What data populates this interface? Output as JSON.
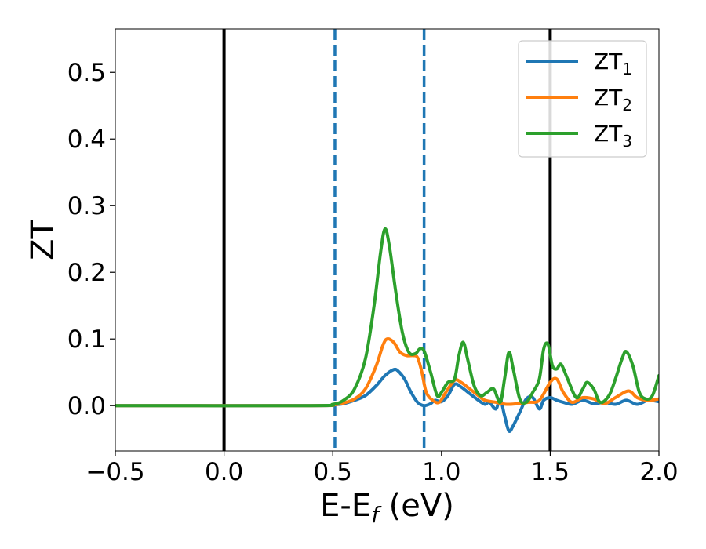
{
  "chart_data": {
    "type": "line",
    "title": "",
    "xlabel": "E-E",
    "xlabel_sub": "f",
    "xlabel_unit": " (eV)",
    "ylabel": "ZT",
    "xlim": [
      -0.5,
      2.0
    ],
    "ylim": [
      -0.068,
      0.565
    ],
    "grid": false,
    "legend_position": "top-right",
    "x_ticks": [
      -0.5,
      0.0,
      0.5,
      1.0,
      1.5,
      2.0
    ],
    "x_tick_labels": [
      "−0.5",
      "0.0",
      "0.5",
      "1.0",
      "1.5",
      "2.0"
    ],
    "y_ticks": [
      0.0,
      0.1,
      0.2,
      0.3,
      0.4,
      0.5
    ],
    "y_tick_labels": [
      "0.0",
      "0.1",
      "0.2",
      "0.3",
      "0.4",
      "0.5"
    ],
    "vertical_lines": [
      {
        "x": 0.0,
        "style": "solid",
        "color": "#000000"
      },
      {
        "x": 1.5,
        "style": "solid",
        "color": "#000000"
      },
      {
        "x": 0.51,
        "style": "dashed",
        "color": "#1f77b4"
      },
      {
        "x": 0.92,
        "style": "dashed",
        "color": "#1f77b4"
      }
    ],
    "series": [
      {
        "name": "ZT",
        "name_sub": "1",
        "color": "#1f77b4",
        "points": [
          [
            -0.5,
            0.0
          ],
          [
            0.4,
            0.0
          ],
          [
            0.5,
            0.001
          ],
          [
            0.55,
            0.003
          ],
          [
            0.6,
            0.008
          ],
          [
            0.65,
            0.015
          ],
          [
            0.7,
            0.03
          ],
          [
            0.74,
            0.045
          ],
          [
            0.78,
            0.054
          ],
          [
            0.8,
            0.052
          ],
          [
            0.83,
            0.04
          ],
          [
            0.86,
            0.02
          ],
          [
            0.89,
            0.005
          ],
          [
            0.92,
            0.0
          ],
          [
            0.95,
            0.003
          ],
          [
            0.97,
            0.008
          ],
          [
            1.0,
            0.006
          ],
          [
            1.03,
            0.015
          ],
          [
            1.06,
            0.032
          ],
          [
            1.09,
            0.028
          ],
          [
            1.13,
            0.018
          ],
          [
            1.17,
            0.008
          ],
          [
            1.2,
            0.002
          ],
          [
            1.22,
            0.005
          ],
          [
            1.25,
            -0.005
          ],
          [
            1.27,
            0.01
          ],
          [
            1.29,
            -0.015
          ],
          [
            1.31,
            -0.038
          ],
          [
            1.33,
            -0.03
          ],
          [
            1.36,
            -0.01
          ],
          [
            1.39,
            0.01
          ],
          [
            1.42,
            0.012
          ],
          [
            1.45,
            -0.005
          ],
          [
            1.47,
            0.008
          ],
          [
            1.5,
            0.012
          ],
          [
            1.53,
            0.008
          ],
          [
            1.56,
            0.005
          ],
          [
            1.6,
            0.002
          ],
          [
            1.65,
            0.008
          ],
          [
            1.7,
            0.003
          ],
          [
            1.75,
            0.005
          ],
          [
            1.8,
            0.002
          ],
          [
            1.85,
            0.008
          ],
          [
            1.9,
            0.002
          ],
          [
            1.95,
            0.008
          ],
          [
            2.0,
            0.006
          ]
        ]
      },
      {
        "name": "ZT",
        "name_sub": "2",
        "color": "#ff7f0e",
        "points": [
          [
            -0.5,
            0.0
          ],
          [
            0.4,
            0.0
          ],
          [
            0.5,
            0.001
          ],
          [
            0.55,
            0.004
          ],
          [
            0.6,
            0.01
          ],
          [
            0.65,
            0.025
          ],
          [
            0.7,
            0.06
          ],
          [
            0.73,
            0.09
          ],
          [
            0.75,
            0.1
          ],
          [
            0.78,
            0.095
          ],
          [
            0.81,
            0.08
          ],
          [
            0.84,
            0.075
          ],
          [
            0.87,
            0.075
          ],
          [
            0.89,
            0.072
          ],
          [
            0.91,
            0.05
          ],
          [
            0.93,
            0.02
          ],
          [
            0.96,
            0.008
          ],
          [
            0.99,
            0.005
          ],
          [
            1.02,
            0.02
          ],
          [
            1.06,
            0.038
          ],
          [
            1.09,
            0.035
          ],
          [
            1.13,
            0.025
          ],
          [
            1.17,
            0.015
          ],
          [
            1.2,
            0.008
          ],
          [
            1.25,
            0.005
          ],
          [
            1.3,
            0.002
          ],
          [
            1.35,
            0.003
          ],
          [
            1.4,
            0.005
          ],
          [
            1.45,
            0.008
          ],
          [
            1.5,
            0.035
          ],
          [
            1.53,
            0.04
          ],
          [
            1.56,
            0.02
          ],
          [
            1.6,
            0.005
          ],
          [
            1.65,
            0.012
          ],
          [
            1.7,
            0.01
          ],
          [
            1.75,
            0.003
          ],
          [
            1.8,
            0.012
          ],
          [
            1.86,
            0.022
          ],
          [
            1.9,
            0.012
          ],
          [
            1.95,
            0.008
          ],
          [
            2.0,
            0.01
          ]
        ]
      },
      {
        "name": "ZT",
        "name_sub": "3",
        "color": "#2ca02c",
        "points": [
          [
            -0.5,
            0.0
          ],
          [
            0.4,
            0.0
          ],
          [
            0.5,
            0.002
          ],
          [
            0.55,
            0.008
          ],
          [
            0.6,
            0.025
          ],
          [
            0.65,
            0.07
          ],
          [
            0.69,
            0.15
          ],
          [
            0.72,
            0.23
          ],
          [
            0.74,
            0.265
          ],
          [
            0.76,
            0.24
          ],
          [
            0.79,
            0.17
          ],
          [
            0.82,
            0.11
          ],
          [
            0.85,
            0.08
          ],
          [
            0.88,
            0.078
          ],
          [
            0.9,
            0.085
          ],
          [
            0.92,
            0.082
          ],
          [
            0.95,
            0.05
          ],
          [
            0.98,
            0.015
          ],
          [
            1.0,
            0.02
          ],
          [
            1.03,
            0.035
          ],
          [
            1.06,
            0.04
          ],
          [
            1.08,
            0.075
          ],
          [
            1.1,
            0.095
          ],
          [
            1.12,
            0.07
          ],
          [
            1.15,
            0.03
          ],
          [
            1.18,
            0.015
          ],
          [
            1.21,
            0.02
          ],
          [
            1.24,
            0.025
          ],
          [
            1.27,
            0.005
          ],
          [
            1.29,
            0.04
          ],
          [
            1.31,
            0.08
          ],
          [
            1.33,
            0.055
          ],
          [
            1.36,
            0.01
          ],
          [
            1.39,
            0.005
          ],
          [
            1.42,
            0.02
          ],
          [
            1.45,
            0.04
          ],
          [
            1.47,
            0.085
          ],
          [
            1.49,
            0.092
          ],
          [
            1.51,
            0.06
          ],
          [
            1.53,
            0.055
          ],
          [
            1.55,
            0.062
          ],
          [
            1.58,
            0.04
          ],
          [
            1.62,
            0.012
          ],
          [
            1.65,
            0.025
          ],
          [
            1.67,
            0.035
          ],
          [
            1.7,
            0.025
          ],
          [
            1.73,
            0.005
          ],
          [
            1.77,
            0.015
          ],
          [
            1.8,
            0.04
          ],
          [
            1.83,
            0.07
          ],
          [
            1.85,
            0.081
          ],
          [
            1.88,
            0.06
          ],
          [
            1.91,
            0.02
          ],
          [
            1.94,
            0.01
          ],
          [
            1.97,
            0.015
          ],
          [
            2.0,
            0.045
          ]
        ]
      }
    ]
  }
}
